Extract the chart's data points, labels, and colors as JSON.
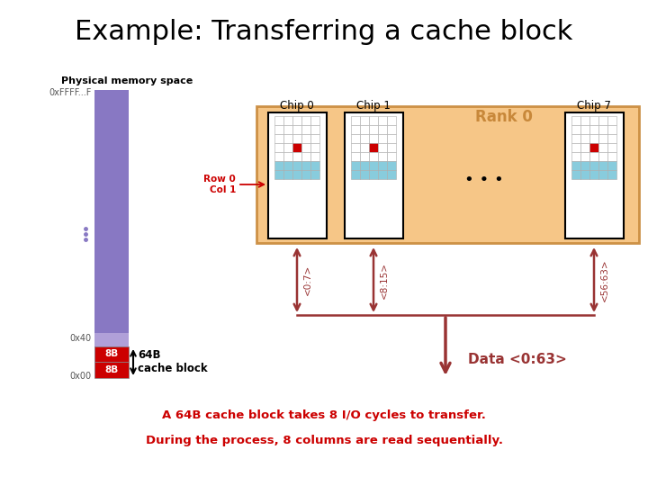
{
  "title": "Example: Transferring a cache block",
  "title_fontsize": 22,
  "bg_color": "#ffffff",
  "phys_mem_label": "Physical memory space",
  "phys_mem_top_label": "0xFFFF...F",
  "phys_mem_mid_label": "0x40",
  "phys_mem_bot_label": "0x00",
  "phys_mem_color": "#8878c3",
  "phys_mem_red_color": "#cc0000",
  "chip_labels": [
    "Chip 0",
    "Chip 1",
    "Chip 7"
  ],
  "rank_label": "Rank 0",
  "rank_color": "#f5c07a",
  "rank_border_color": "#c8883a",
  "arrow_color": "#993333",
  "data_label": "Data <0:63>",
  "bit_labels": [
    "<0:7>",
    "<8:15>",
    "<56:63>"
  ],
  "row_col_label": "Row 0\nCol 1",
  "cache_block_label": "64B\ncache block",
  "bottom_text1": "A 64B cache block takes 8 I/O cycles to transfer.",
  "bottom_text2": "During the process, 8 columns are read sequentially.",
  "cell_white": "#ffffff",
  "cell_red": "#cc0000",
  "cell_cyan": "#88ccdd"
}
